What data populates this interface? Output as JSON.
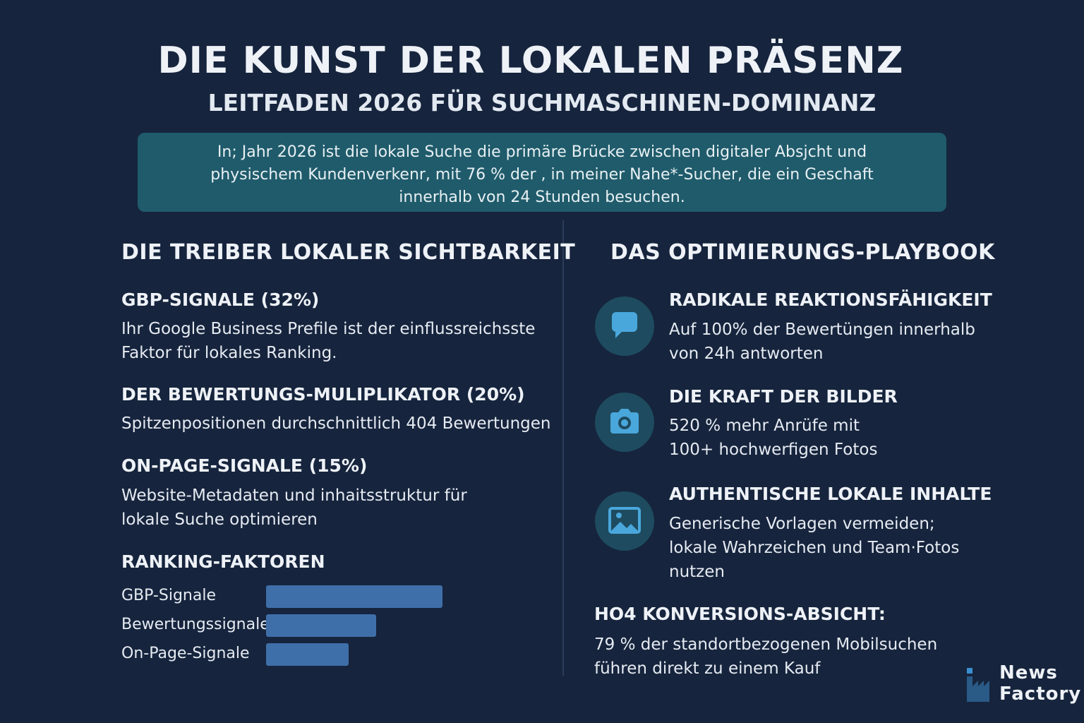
{
  "header": {
    "title": "DIE KUNST DER LOKALEN PRÄSENZ",
    "subtitle": "LEITFADEN 2026 FÜR SUCHMASCHINEN-DOMINANZ"
  },
  "intro": "In; Jahr 2026 ist die lokale Suche die primäre Brücke zwischen digitaler Absjcht und physischem Kundenverkenr, mit 76 % der , in meiner Nahe*-Sucher, die ein Geschaft innerhalb von 24 Stunden besuchen.",
  "left": {
    "heading": "DIE TREIBER LOKALER SICHTBARKEIT",
    "items": [
      {
        "title": "GBP-SIGNALE (32%)",
        "text": "Ihr Google Business Prefile ist der einflussreichsste Faktor für lokales Ranking."
      },
      {
        "title": "DER BEWERTUNGS-MULIPLIKATOR (20%)",
        "text": "Spitzenpositionen durchschnittlich 404 Bewertungen"
      },
      {
        "title": "ON-PAGE-SIGNALE (15%)",
        "text": "Website-Metadaten und inhaitsstruktur für lokale Suche optimieren"
      }
    ]
  },
  "ranking_chart": {
    "type": "bar",
    "title": "RANKING-FAKTOREN",
    "categories": [
      "GBP-Signale",
      "Bewertungssignale",
      "On-Page-Signale"
    ],
    "values": [
      32,
      20,
      15
    ],
    "color": "#3f6fa9"
  },
  "right": {
    "heading": "DAS OPTIMIERUNGS-PLAYBOOK",
    "items": [
      {
        "title": "RADIKALE REAKTIONSFÄHIGKEIT",
        "text": "Auf 100% der Bewertüngen innerhalb von 24h antworten"
      },
      {
        "title": "DIE KRAFT DER BILDER",
        "text": "520 % mehr Anrüfe mit 100+ hochwerfigen Fotos"
      },
      {
        "title": "AUTHENTISCHE LOKALE INHALTE",
        "text": "Generische Vorlagen vermeiden; lokale Wahrzeichen und Team·Fotos nutzen"
      }
    ],
    "callout": {
      "title": "HO4 KONVERSIONS-ABSICHT:",
      "text": "79 % der standortbezogenen Mobilsuchen führen direkt zu einem Kauf"
    }
  },
  "logo": {
    "line1": "News",
    "line2": "Factory"
  }
}
